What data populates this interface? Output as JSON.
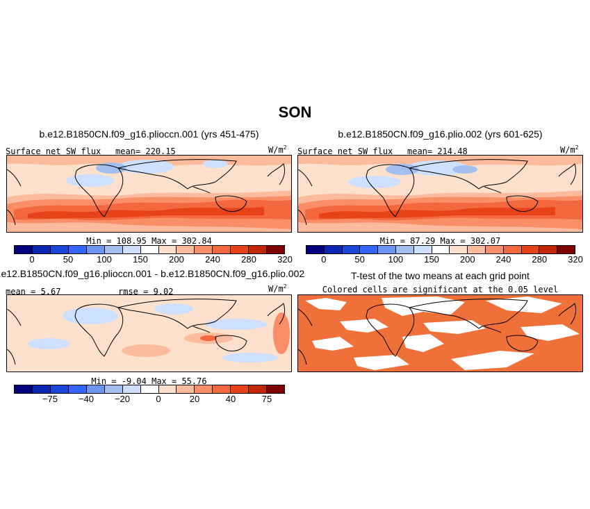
{
  "figure_title": "SON",
  "colors": {
    "scale": [
      "#00007f",
      "#0a26b3",
      "#1a46d9",
      "#3366ff",
      "#6b96f2",
      "#a3bff0",
      "#cde0ff",
      "#ffffff",
      "#fde1cc",
      "#fcbb9c",
      "#f98e69",
      "#f3683f",
      "#e84318",
      "#c32608",
      "#7f0000"
    ],
    "significant": "#f0703a"
  },
  "panels": [
    {
      "title": "b.e12.B1850CN.f09_g16.plioccn.001 (yrs 451-475)",
      "left_label": "Surface net SW flux",
      "center_label": "mean= 220.15",
      "units": "W/m",
      "units_exp": "2",
      "stats": "Min = 108.95 Max = 302.84"
    },
    {
      "title": "b.e12.B1850CN.f09_g16.plio.002 (yrs 601-625)",
      "left_label": "Surface net SW flux",
      "center_label": "mean= 214.48",
      "units": "W/m",
      "units_exp": "2",
      "stats": "Min = 87.29 Max = 302.07"
    },
    {
      "title": "b.e12.B1850CN.f09_g16.plioccn.001 - b.e12.B1850CN.f09_g16.plio.002",
      "left_label": "mean = 5.67",
      "center_label": "rmse = 9.02",
      "units": "W/m",
      "units_exp": "2",
      "stats": "Min = -9.04 Max = 55.76"
    },
    {
      "title": "T-test of the two means at each grid point",
      "subtitle": "Colored cells are significant at the 0.05 level"
    }
  ],
  "chart_data": [
    {
      "type": "heatmap",
      "title": "b.e12.B1850CN.f09_g16.plioccn.001 (yrs 451-475)",
      "variable": "Surface net SW flux",
      "mean": 220.15,
      "min": 108.95,
      "max": 302.84,
      "colorbar_levels": [
        0,
        25,
        50,
        75,
        100,
        125,
        150,
        175,
        200,
        220,
        240,
        260,
        280,
        300,
        320
      ],
      "colorbar_tick_labels": [
        "0",
        "50",
        "100",
        "150",
        "200",
        "240",
        "280",
        "320"
      ],
      "units": "W/m2"
    },
    {
      "type": "heatmap",
      "title": "b.e12.B1850CN.f09_g16.plio.002 (yrs 601-625)",
      "variable": "Surface net SW flux",
      "mean": 214.48,
      "min": 87.29,
      "max": 302.07,
      "colorbar_levels": [
        0,
        25,
        50,
        75,
        100,
        125,
        150,
        175,
        200,
        220,
        240,
        260,
        280,
        300,
        320
      ],
      "colorbar_tick_labels": [
        "0",
        "50",
        "100",
        "150",
        "200",
        "240",
        "280",
        "320"
      ],
      "units": "W/m2"
    },
    {
      "type": "heatmap",
      "title": "b.e12.B1850CN.f09_g16.plioccn.001 - b.e12.B1850CN.f09_g16.plio.002",
      "mean": 5.67,
      "rmse": 9.02,
      "min": -9.04,
      "max": 55.76,
      "colorbar_levels": [
        -100,
        -75,
        -60,
        -40,
        -30,
        -20,
        -10,
        0,
        10,
        20,
        30,
        40,
        60,
        75,
        100
      ],
      "colorbar_tick_labels": [
        "-75",
        "-40",
        "-20",
        "0",
        "20",
        "40",
        "75"
      ],
      "units": "W/m2"
    },
    {
      "type": "heatmap",
      "title": "T-test of the two means at each grid point",
      "subtitle": "Colored cells are significant at the 0.05 level",
      "significance_level": 0.05
    }
  ]
}
